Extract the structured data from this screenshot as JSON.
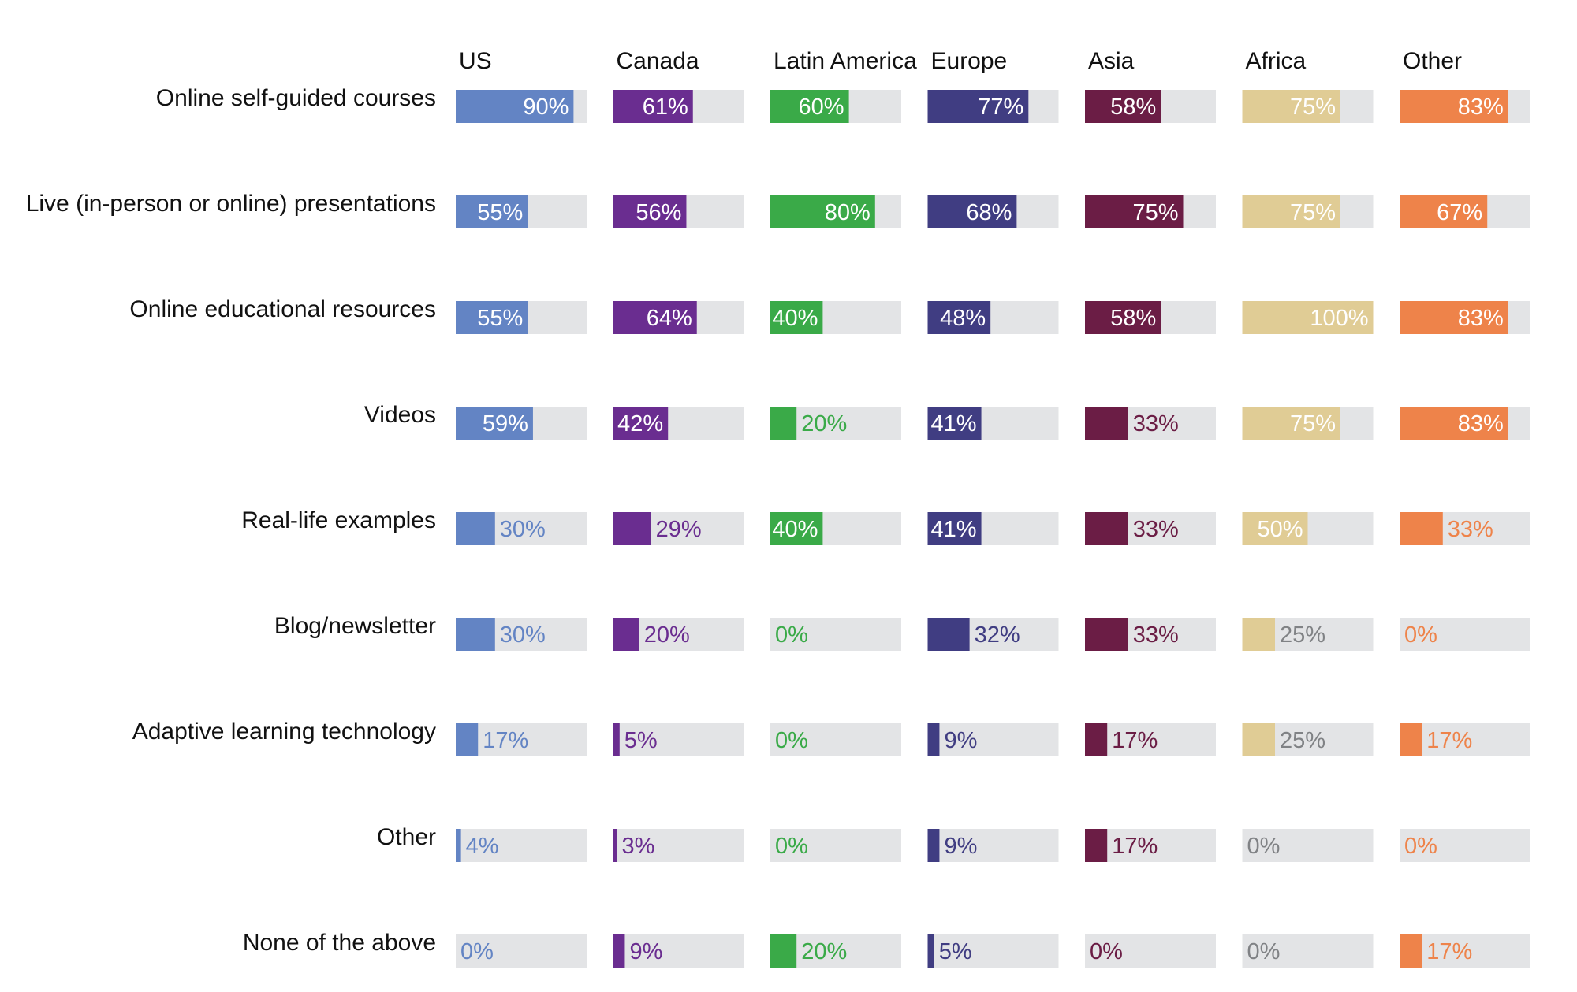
{
  "chart_data": {
    "type": "bar",
    "orientation": "horizontal",
    "layout": "small-multiples",
    "xlim": [
      0,
      100
    ],
    "unit": "%",
    "categories": [
      "Online self-guided courses",
      "Live (in-person or online) presentations",
      "Online educational resources",
      "Videos",
      "Real-life examples",
      "Blog/newsletter",
      "Adaptive learning technology",
      "Other",
      "None of the above"
    ],
    "series": [
      {
        "name": "US",
        "color": "#6384c4",
        "values": [
          90,
          55,
          55,
          59,
          30,
          30,
          17,
          4,
          0
        ]
      },
      {
        "name": "Canada",
        "color": "#6a2d90",
        "values": [
          61,
          56,
          64,
          42,
          29,
          20,
          5,
          3,
          9
        ]
      },
      {
        "name": "Latin America",
        "color": "#3aaa48",
        "values": [
          60,
          80,
          40,
          20,
          40,
          0,
          0,
          0,
          20
        ]
      },
      {
        "name": "Europe",
        "color": "#403d82",
        "values": [
          77,
          68,
          48,
          41,
          41,
          32,
          9,
          9,
          5
        ]
      },
      {
        "name": "Asia",
        "color": "#6b1d45",
        "values": [
          58,
          75,
          58,
          33,
          33,
          33,
          17,
          17,
          0
        ]
      },
      {
        "name": "Africa",
        "color": "#e0cc95",
        "values": [
          75,
          75,
          100,
          75,
          50,
          25,
          25,
          0,
          0
        ]
      },
      {
        "name": "Other",
        "color": "#ee834a",
        "values": [
          83,
          67,
          83,
          83,
          33,
          0,
          17,
          0,
          17
        ]
      }
    ],
    "background_bar_color": "#e3e4e6",
    "inside_label_color": "#ffffff",
    "muted_label_color": "#808285"
  }
}
